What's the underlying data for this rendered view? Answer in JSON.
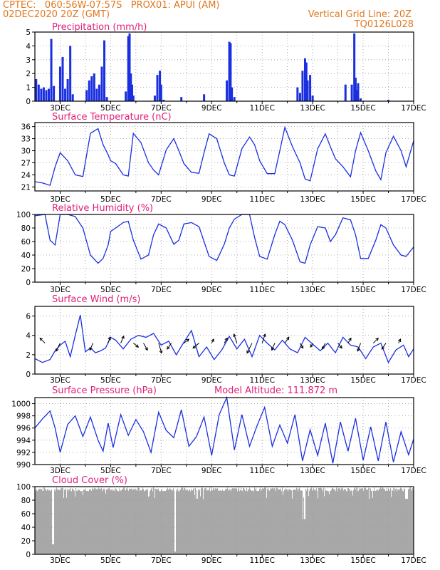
{
  "header": {
    "line1_left": "CPTEC:   060:56W-07:57S   PROX01: APUI (AM)",
    "line2_left": "02DEC2020 20Z (GMT)",
    "line1_right": "Vertical Grid Line: 20Z",
    "line2_right": "TQ0126L028"
  },
  "colors": {
    "header": "#e07820",
    "title": "#e0207a",
    "line": "#1a2fe0",
    "bars": "#1a2fe0",
    "cloud": "#a8a8a8"
  },
  "x_axis_ticks": [
    "3DEC",
    "5DEC",
    "7DEC",
    "9DEC",
    "11DEC",
    "13DEC",
    "15DEC",
    "17DEC"
  ],
  "chart_data": [
    {
      "type": "bar",
      "title": "Precipitation (mm/h)",
      "ylim": [
        0,
        5
      ],
      "yticks": [
        "0",
        "1",
        "2",
        "3",
        "4",
        "5"
      ],
      "x_range_days": [
        2.0,
        17.0
      ],
      "x": [
        2.05,
        2.15,
        2.25,
        2.35,
        2.45,
        2.55,
        2.65,
        2.75,
        3.0,
        3.1,
        3.2,
        3.3,
        3.4,
        3.5,
        4.05,
        4.15,
        4.25,
        4.35,
        4.45,
        4.55,
        4.65,
        4.75,
        4.85,
        5.6,
        5.7,
        5.75,
        5.8,
        5.85,
        5.9,
        6.75,
        6.85,
        6.95,
        7.0,
        7.1,
        7.8,
        8.7,
        9.6,
        9.7,
        9.75,
        9.8,
        9.9,
        12.4,
        12.5,
        12.6,
        12.7,
        12.75,
        12.8,
        12.9,
        13.0,
        14.3,
        14.55,
        14.65,
        14.7,
        14.75,
        14.8,
        14.9,
        16.0
      ],
      "values": [
        1.6,
        1.2,
        0.9,
        1.0,
        0.8,
        0.9,
        4.5,
        1.1,
        2.5,
        3.2,
        0.9,
        1.6,
        4.0,
        0.5,
        0.8,
        1.5,
        1.8,
        2.0,
        0.9,
        1.2,
        2.5,
        4.4,
        0.3,
        0.7,
        4.7,
        4.9,
        2.0,
        1.2,
        0.4,
        0.4,
        1.9,
        2.2,
        1.2,
        0.1,
        0.3,
        0.5,
        1.5,
        4.3,
        4.2,
        1.0,
        0.3,
        1.0,
        0.6,
        2.2,
        3.1,
        2.8,
        1.5,
        1.9,
        0.4,
        1.2,
        1.2,
        4.9,
        1.7,
        0.8,
        1.3,
        0.2,
        0.1
      ],
      "grid": true
    },
    {
      "type": "line",
      "title": "Surface Temperature (nC)",
      "ylim": [
        20,
        37
      ],
      "yticks": [
        "21",
        "24",
        "27",
        "30",
        "33",
        "36"
      ],
      "x": [
        2.0,
        2.3,
        2.6,
        2.8,
        3.0,
        3.3,
        3.6,
        3.9,
        4.2,
        4.5,
        4.7,
        4.9,
        5.0,
        5.2,
        5.5,
        5.7,
        5.9,
        6.2,
        6.5,
        6.7,
        6.9,
        7.2,
        7.5,
        7.7,
        7.9,
        8.2,
        8.5,
        8.7,
        8.9,
        9.2,
        9.5,
        9.7,
        9.9,
        10.2,
        10.5,
        10.7,
        10.9,
        11.2,
        11.5,
        11.7,
        11.9,
        12.2,
        12.5,
        12.7,
        12.9,
        13.2,
        13.5,
        13.7,
        13.9,
        14.2,
        14.5,
        14.7,
        14.9,
        15.2,
        15.5,
        15.7,
        15.9,
        16.2,
        16.5,
        16.7,
        17.0
      ],
      "values": [
        22.3,
        22.0,
        21.4,
        26.0,
        29.5,
        27.5,
        24.0,
        23.6,
        34.3,
        35.5,
        31.5,
        29.0,
        27.5,
        26.8,
        24.0,
        23.7,
        34.3,
        32.0,
        27.0,
        25.2,
        24.0,
        30.2,
        33.0,
        30.0,
        26.8,
        24.6,
        24.4,
        29.5,
        34.2,
        33.0,
        27.0,
        24.0,
        23.7,
        30.5,
        33.4,
        31.5,
        27.5,
        24.3,
        24.3,
        30.0,
        35.8,
        31.0,
        27.0,
        23.0,
        22.5,
        30.5,
        34.2,
        31.0,
        28.0,
        26.0,
        23.5,
        30.0,
        34.5,
        30.0,
        25.0,
        22.8,
        29.5,
        33.6,
        30.0,
        26.0,
        32.5
      ],
      "grid": true
    },
    {
      "type": "line",
      "title": "Relative Humidity (%)",
      "ylim": [
        0,
        100
      ],
      "yticks": [
        "0",
        "20",
        "40",
        "60",
        "80",
        "100"
      ],
      "x": [
        2.0,
        2.4,
        2.6,
        2.8,
        3.0,
        3.3,
        3.6,
        3.9,
        4.2,
        4.5,
        4.7,
        4.9,
        5.0,
        5.2,
        5.5,
        5.7,
        5.9,
        6.2,
        6.5,
        6.7,
        6.9,
        7.2,
        7.5,
        7.7,
        7.9,
        8.2,
        8.5,
        8.7,
        8.9,
        9.2,
        9.5,
        9.7,
        9.9,
        10.2,
        10.5,
        10.7,
        10.9,
        11.2,
        11.5,
        11.7,
        11.9,
        12.2,
        12.5,
        12.7,
        12.9,
        13.2,
        13.5,
        13.7,
        13.9,
        14.2,
        14.5,
        14.7,
        14.9,
        15.2,
        15.5,
        15.7,
        15.9,
        16.2,
        16.5,
        16.7,
        17.0
      ],
      "values": [
        98,
        100,
        62,
        55,
        100,
        100,
        97,
        80,
        40,
        28,
        35,
        55,
        75,
        80,
        88,
        90,
        62,
        34,
        40,
        70,
        86,
        80,
        56,
        62,
        86,
        88,
        82,
        60,
        38,
        32,
        56,
        80,
        93,
        100,
        100,
        66,
        38,
        34,
        70,
        90,
        85,
        62,
        30,
        28,
        55,
        82,
        80,
        60,
        70,
        95,
        92,
        70,
        35,
        35,
        62,
        85,
        80,
        55,
        40,
        38,
        52
      ],
      "grid": true
    },
    {
      "type": "line",
      "title": "Surface Wind (m/s)",
      "ylim": [
        0,
        7
      ],
      "yticks": [
        "0",
        "2",
        "4",
        "6"
      ],
      "x": [
        2.0,
        2.3,
        2.6,
        2.8,
        3.0,
        3.2,
        3.4,
        3.6,
        3.8,
        4.0,
        4.2,
        4.4,
        4.6,
        4.8,
        5.0,
        5.2,
        5.5,
        5.8,
        6.1,
        6.4,
        6.7,
        7.0,
        7.3,
        7.6,
        7.9,
        8.2,
        8.5,
        8.8,
        9.1,
        9.4,
        9.7,
        10.0,
        10.3,
        10.6,
        10.9,
        11.2,
        11.5,
        11.8,
        12.1,
        12.4,
        12.7,
        13.0,
        13.3,
        13.6,
        13.9,
        14.2,
        14.5,
        14.8,
        15.1,
        15.4,
        15.7,
        16.0,
        16.3,
        16.6,
        16.8,
        17.0
      ],
      "values": [
        1.6,
        1.2,
        1.5,
        2.4,
        3.0,
        3.4,
        1.8,
        4.0,
        6.1,
        2.3,
        2.7,
        2.2,
        2.4,
        2.7,
        3.8,
        3.5,
        2.6,
        3.6,
        4.0,
        3.8,
        4.2,
        3.0,
        3.4,
        2.0,
        3.3,
        4.5,
        1.8,
        2.8,
        1.5,
        2.5,
        3.9,
        2.6,
        3.6,
        1.8,
        4.0,
        3.2,
        2.5,
        3.5,
        2.6,
        2.2,
        3.8,
        3.1,
        2.4,
        3.2,
        2.2,
        3.8,
        3.0,
        2.8,
        1.6,
        2.8,
        3.2,
        1.2,
        2.5,
        3.0,
        1.8,
        2.6
      ],
      "arrow_x": [
        2.4,
        3.0,
        4.3,
        4.9,
        5.4,
        5.9,
        6.3,
        6.9,
        7.4,
        7.9,
        8.5,
        9.0,
        9.5,
        10.0,
        10.6,
        11.0,
        11.5,
        11.9,
        12.5,
        13.0,
        13.5,
        14.0,
        14.4,
        14.9,
        15.4,
        15.9,
        16.4
      ],
      "arrow_u": [
        -0.5,
        -0.4,
        -0.3,
        0.2,
        0.3,
        0.5,
        0.4,
        0.3,
        -0.4,
        0.5,
        -0.6,
        0.2,
        0.3,
        -0.3,
        -0.5,
        0.3,
        -0.3,
        0.4,
        0.3,
        -0.2,
        -0.3,
        0.4,
        0.3,
        -0.3,
        0.5,
        -0.4,
        0.2
      ],
      "arrow_v": [
        0.5,
        -0.8,
        -0.7,
        0.6,
        0.7,
        -0.4,
        -0.7,
        -1.0,
        -0.6,
        0.4,
        -0.5,
        0.4,
        0.5,
        0.9,
        -1.0,
        0.9,
        -0.7,
        0.6,
        -0.5,
        -0.4,
        -0.6,
        -0.5,
        0.5,
        -0.8,
        0.5,
        -0.6,
        0.4
      ],
      "grid": true
    },
    {
      "type": "line",
      "title": "Surface Pressure (hPa)",
      "annotation": "Model Altitude: 111.872 m",
      "ylim": [
        990,
        1001
      ],
      "yticks": [
        "990",
        "992",
        "994",
        "996",
        "998",
        "1000"
      ],
      "x": [
        2.0,
        2.3,
        2.6,
        2.8,
        3.0,
        3.3,
        3.6,
        3.9,
        4.2,
        4.5,
        4.7,
        4.9,
        5.1,
        5.4,
        5.7,
        6.0,
        6.3,
        6.6,
        6.9,
        7.2,
        7.5,
        7.8,
        8.1,
        8.4,
        8.7,
        9.0,
        9.3,
        9.6,
        9.9,
        10.2,
        10.5,
        10.8,
        11.1,
        11.4,
        11.7,
        12.0,
        12.3,
        12.6,
        12.9,
        13.2,
        13.5,
        13.8,
        14.1,
        14.4,
        14.7,
        15.0,
        15.3,
        15.6,
        15.9,
        16.2,
        16.5,
        16.8,
        17.0
      ],
      "values": [
        996.0,
        997.5,
        998.8,
        996.0,
        992.0,
        996.6,
        998.0,
        994.6,
        997.8,
        994.0,
        992.2,
        996.8,
        992.8,
        998.2,
        994.8,
        997.4,
        995.4,
        992.0,
        998.6,
        995.6,
        994.4,
        999.0,
        993.0,
        994.6,
        997.8,
        991.5,
        998.2,
        1001.0,
        992.4,
        998.2,
        993.0,
        996.4,
        999.4,
        993.0,
        996.5,
        993.5,
        998.2,
        990.6,
        995.7,
        991.5,
        996.8,
        990.2,
        997.0,
        992.2,
        997.6,
        990.7,
        996.2,
        990.6,
        997.0,
        990.4,
        995.4,
        991.6,
        994.2
      ],
      "grid": true
    },
    {
      "type": "bar",
      "title": "Cloud Cover (%)",
      "ylim": [
        0,
        100
      ],
      "yticks": [
        "0",
        "20",
        "40",
        "60",
        "80",
        "100"
      ],
      "x_range_days": [
        2.0,
        17.0
      ],
      "grid": true
    }
  ]
}
